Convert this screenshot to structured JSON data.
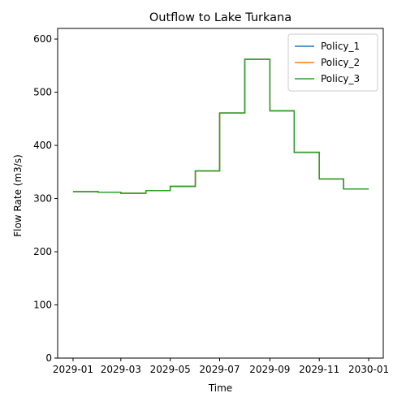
{
  "chart_data": {
    "type": "line",
    "title": "Outflow to Lake Turkana",
    "xlabel": "Time",
    "ylabel": "Flow Rate (m3/s)",
    "x_ticks": [
      "2029-01",
      "2029-03",
      "2029-05",
      "2029-07",
      "2029-09",
      "2029-11",
      "2030-01"
    ],
    "y_ticks": [
      "0",
      "100",
      "200",
      "300",
      "400",
      "500",
      "600"
    ],
    "ylim": [
      0,
      620
    ],
    "xlim": [
      "2028-12-13",
      "2030-01-19"
    ],
    "step": "post",
    "x": [
      "2029-01-01",
      "2029-02-01",
      "2029-03-01",
      "2029-04-01",
      "2029-05-01",
      "2029-06-01",
      "2029-07-01",
      "2029-08-01",
      "2029-09-01",
      "2029-10-01",
      "2029-11-01",
      "2029-12-01",
      "2030-01-01"
    ],
    "series": [
      {
        "name": "Policy_1",
        "color": "#1f77b4",
        "values": [
          313,
          312,
          310,
          315,
          323,
          352,
          461,
          562,
          465,
          387,
          337,
          318,
          318
        ]
      },
      {
        "name": " Policy_2",
        "color": "#ff7f0e",
        "values": [
          313,
          312,
          310,
          315,
          323,
          352,
          461,
          562,
          465,
          387,
          337,
          318,
          318
        ]
      },
      {
        "name": " Policy_3",
        "color": "#2ca02c",
        "values": [
          313,
          312,
          310,
          315,
          323,
          352,
          461,
          562,
          465,
          387,
          337,
          318,
          318
        ]
      }
    ],
    "grid": false,
    "legend_position": "top-right"
  }
}
